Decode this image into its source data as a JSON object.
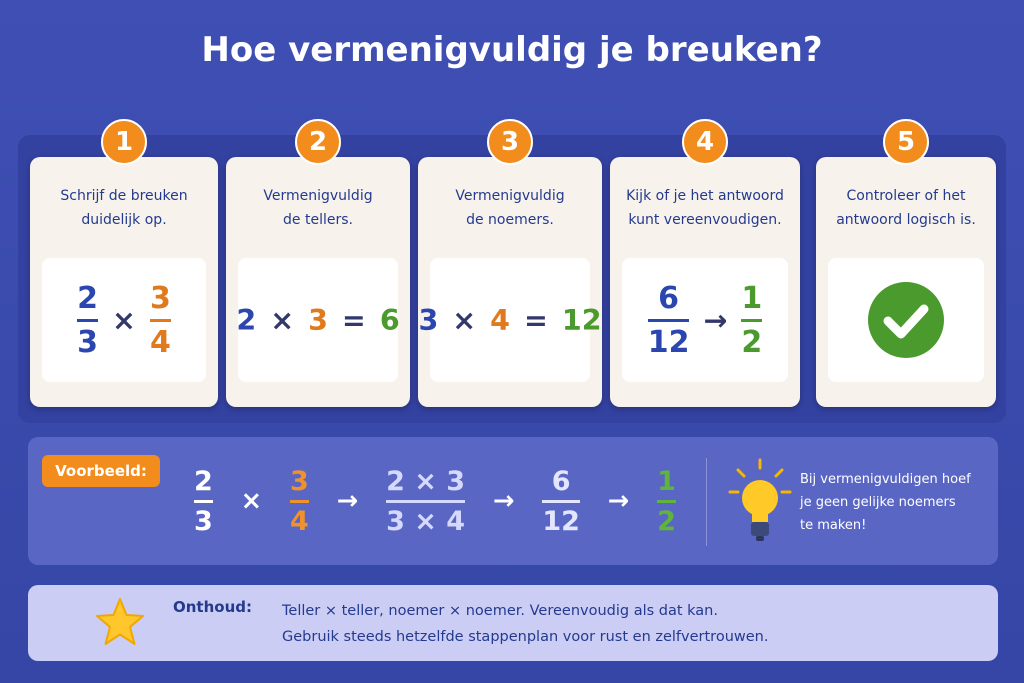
{
  "title": "Hoe vermenigvuldig je breuken?",
  "steps": [
    {
      "number": "1",
      "lines": [
        "Schrijf de breuken",
        "duidelijk op."
      ],
      "tokens": [
        {
          "num": "2",
          "den": "3",
          "color": "#2c46b0"
        },
        {
          "op": "×",
          "color": "#33386b"
        },
        {
          "num": "3",
          "den": "4",
          "color": "#e07a1c"
        }
      ]
    },
    {
      "number": "2",
      "lines": [
        "Vermenigvuldig",
        "de tellers."
      ],
      "tokens": [
        {
          "op": "2",
          "color": "#2c46b0"
        },
        {
          "op": "×",
          "color": "#33386b"
        },
        {
          "op": "3",
          "color": "#e07a1c"
        },
        {
          "op": "=",
          "color": "#33386b"
        },
        {
          "op": "6",
          "color": "#4a9a2e"
        }
      ]
    },
    {
      "number": "3",
      "lines": [
        "Vermenigvuldig",
        "de noemers."
      ],
      "tokens": [
        {
          "op": "3",
          "color": "#2c46b0"
        },
        {
          "op": "×",
          "color": "#33386b"
        },
        {
          "op": "4",
          "color": "#e07a1c"
        },
        {
          "op": "=",
          "color": "#33386b"
        },
        {
          "op": "12",
          "color": "#4a9a2e"
        }
      ]
    },
    {
      "number": "4",
      "lines": [
        "Kijk of je het antwoord",
        "kunt vereenvoudigen."
      ],
      "tokens": [
        {
          "num": "6",
          "den": "12",
          "color": "#2c46b0"
        },
        {
          "op": "→",
          "color": "#33386b"
        },
        {
          "num": "1",
          "den": "2",
          "color": "#4a9a2e"
        }
      ]
    },
    {
      "number": "5",
      "lines": [
        "Controleer of het",
        "antwoord logisch is."
      ]
    }
  ],
  "example": {
    "label": "Voorbeeld:",
    "tokens": [
      {
        "num": "2",
        "den": "3",
        "color": "#ffffff"
      },
      {
        "op": "×",
        "color": "#ffffff"
      },
      {
        "num": "3",
        "den": "4",
        "color": "#f0912c"
      },
      {
        "op": "→",
        "color": "#ffffff"
      },
      {
        "num": "2 × 3",
        "den": "3 × 4",
        "color": "#d6d9ff"
      },
      {
        "op": "→",
        "color": "#ffffff"
      },
      {
        "num": "6",
        "den": "12",
        "color": "#e4e6ff"
      },
      {
        "op": "→",
        "color": "#ffffff"
      },
      {
        "num": "1",
        "den": "2",
        "color": "#5fb43a"
      }
    ],
    "tip": [
      "Bij vermenigvuldigen hoef",
      "je geen gelijke noemers",
      "te maken!"
    ]
  },
  "remember": {
    "label": "Onthoud:",
    "lines": [
      "Teller × teller, noemer × noemer. Vereenvoudig als dat kan.",
      "Gebruik steeds hetzelfde stappenplan voor rust en zelfvertrouwen."
    ]
  }
}
